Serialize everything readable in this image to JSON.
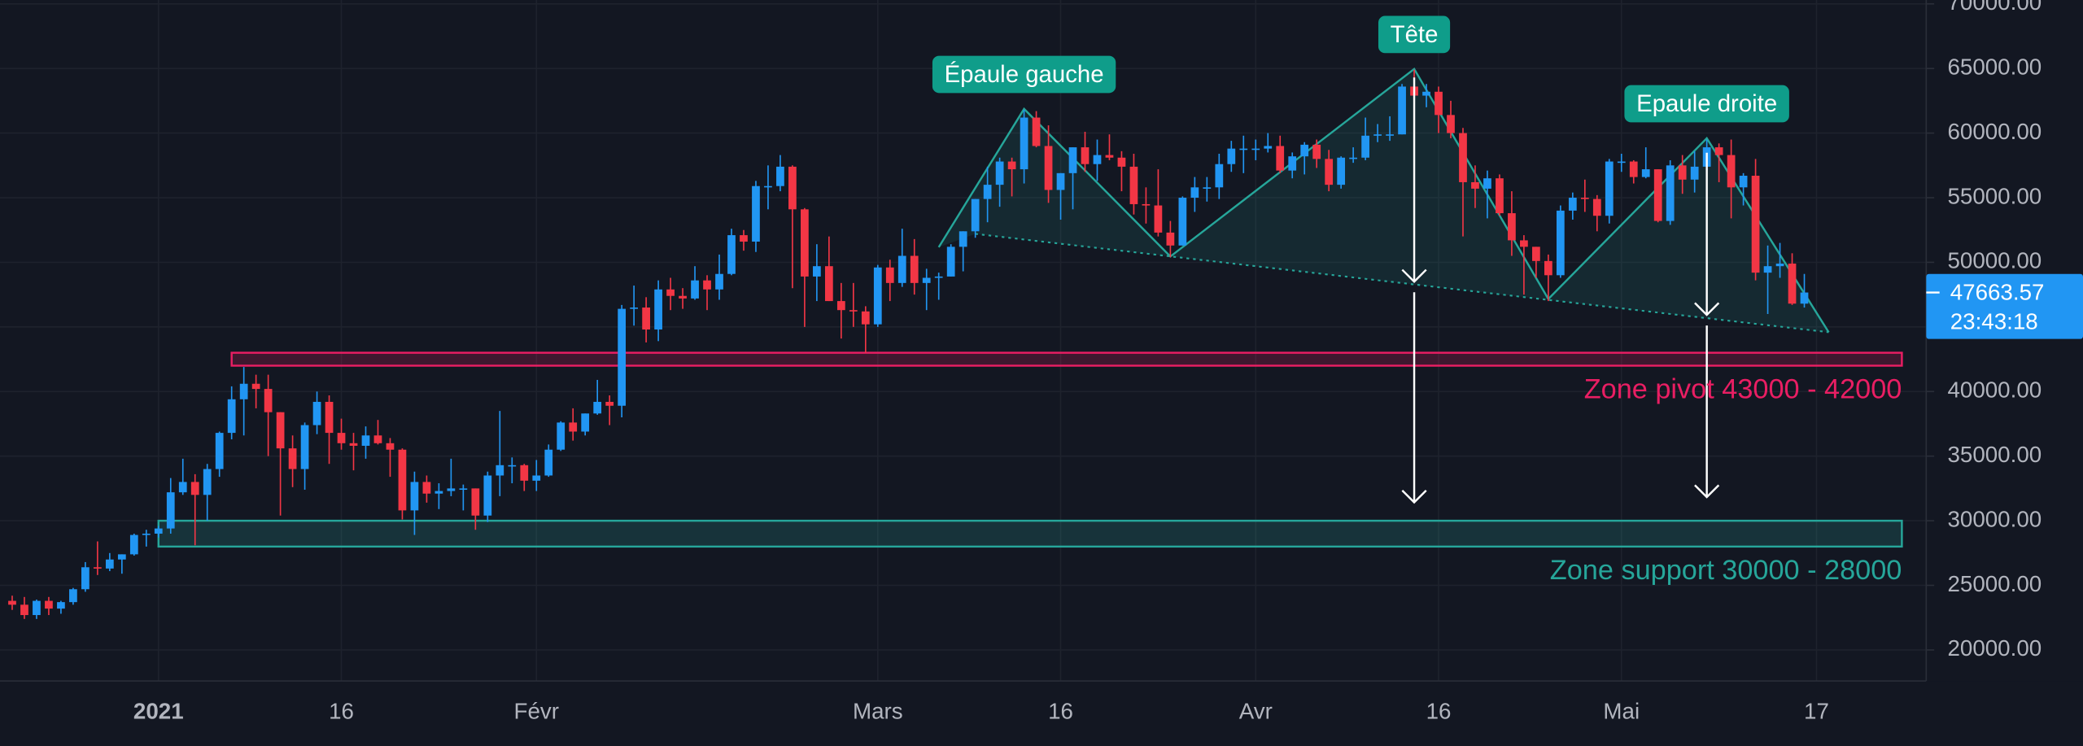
{
  "chart_data": {
    "type": "candlestick",
    "x": [
      "2020-12-20",
      "2020-12-21",
      "2020-12-22",
      "2020-12-23",
      "2020-12-24",
      "2020-12-25",
      "2020-12-26",
      "2020-12-27",
      "2020-12-28",
      "2020-12-29",
      "2020-12-30",
      "2020-12-31",
      "2021-01-01",
      "2021-01-02",
      "2021-01-03",
      "2021-01-04",
      "2021-01-05",
      "2021-01-06",
      "2021-01-07",
      "2021-01-08",
      "2021-01-09",
      "2021-01-10",
      "2021-01-11",
      "2021-01-12",
      "2021-01-13",
      "2021-01-14",
      "2021-01-15",
      "2021-01-16",
      "2021-01-17",
      "2021-01-18",
      "2021-01-19",
      "2021-01-20",
      "2021-01-21",
      "2021-01-22",
      "2021-01-23",
      "2021-01-24",
      "2021-01-25",
      "2021-01-26",
      "2021-01-27",
      "2021-01-28",
      "2021-01-29",
      "2021-01-30",
      "2021-01-31",
      "2021-02-01",
      "2021-02-02",
      "2021-02-03",
      "2021-02-04",
      "2021-02-05",
      "2021-02-06",
      "2021-02-07",
      "2021-02-08",
      "2021-02-09",
      "2021-02-10",
      "2021-02-11",
      "2021-02-12",
      "2021-02-13",
      "2021-02-14",
      "2021-02-15",
      "2021-02-16",
      "2021-02-17",
      "2021-02-18",
      "2021-02-19",
      "2021-02-20",
      "2021-02-21",
      "2021-02-22",
      "2021-02-23",
      "2021-02-24",
      "2021-02-25",
      "2021-02-26",
      "2021-02-27",
      "2021-02-28",
      "2021-03-01",
      "2021-03-02",
      "2021-03-03",
      "2021-03-04",
      "2021-03-05",
      "2021-03-06",
      "2021-03-07",
      "2021-03-08",
      "2021-03-09",
      "2021-03-10",
      "2021-03-11",
      "2021-03-12",
      "2021-03-13",
      "2021-03-14",
      "2021-03-15",
      "2021-03-16",
      "2021-03-17",
      "2021-03-18",
      "2021-03-19",
      "2021-03-20",
      "2021-03-21",
      "2021-03-22",
      "2021-03-23",
      "2021-03-24",
      "2021-03-25",
      "2021-03-26",
      "2021-03-27",
      "2021-03-28",
      "2021-03-29",
      "2021-03-30",
      "2021-03-31",
      "2021-04-01",
      "2021-04-02",
      "2021-04-03",
      "2021-04-04",
      "2021-04-05",
      "2021-04-06",
      "2021-04-07",
      "2021-04-08",
      "2021-04-09",
      "2021-04-10",
      "2021-04-11",
      "2021-04-12",
      "2021-04-13",
      "2021-04-14",
      "2021-04-15",
      "2021-04-16",
      "2021-04-17",
      "2021-04-18",
      "2021-04-19",
      "2021-04-20",
      "2021-04-21",
      "2021-04-22",
      "2021-04-23",
      "2021-04-24",
      "2021-04-25",
      "2021-04-26",
      "2021-04-27",
      "2021-04-28",
      "2021-04-29",
      "2021-04-30",
      "2021-05-01",
      "2021-05-02",
      "2021-05-03",
      "2021-05-04",
      "2021-05-05",
      "2021-05-06",
      "2021-05-07",
      "2021-05-08",
      "2021-05-09",
      "2021-05-10",
      "2021-05-11",
      "2021-05-12",
      "2021-05-13",
      "2021-05-14",
      "2021-05-15",
      "2021-05-16"
    ],
    "open": [
      23800,
      23500,
      22700,
      23800,
      23200,
      23700,
      24700,
      26400,
      26300,
      27000,
      27400,
      28900,
      29000,
      29400,
      32200,
      33000,
      32000,
      34000,
      36800,
      39400,
      40600,
      40200,
      38400,
      35600,
      34000,
      37400,
      39200,
      36800,
      36000,
      35800,
      36600,
      36000,
      35500,
      30800,
      33000,
      32100,
      32300,
      32500,
      32500,
      30400,
      33500,
      34300,
      34300,
      33100,
      33500,
      35500,
      37600,
      36900,
      38300,
      39200,
      38900,
      46400,
      46500,
      44800,
      47900,
      47400,
      47200,
      48600,
      47900,
      49100,
      52100,
      51600,
      55900,
      55900,
      57400,
      54100,
      48900,
      49700,
      47000,
      46300,
      46200,
      45200,
      49600,
      48400,
      50500,
      48400,
      48800,
      48900,
      51200,
      52400,
      54900,
      56000,
      57800,
      57200,
      61200,
      59000,
      55600,
      56900,
      58900,
      57600,
      58300,
      58100,
      57400,
      54500,
      54400,
      52300,
      51300,
      55000,
      55800,
      55800,
      57600,
      58800,
      58800,
      58800,
      59000,
      57100,
      58200,
      59100,
      58000,
      56000,
      58100,
      58100,
      59800,
      59900,
      59900,
      63600,
      62900,
      63200,
      61400,
      60000,
      56200,
      55700,
      56500,
      53800,
      51700,
      51200,
      50100,
      49000,
      54000,
      55000,
      54900,
      53600,
      57800,
      57800,
      56600,
      57200,
      53200,
      57500,
      56400,
      57400,
      58900,
      58300,
      55800,
      56700,
      49200,
      49700,
      49900,
      46800
    ],
    "high": [
      24200,
      24100,
      23900,
      24100,
      23800,
      24800,
      26800,
      28400,
      27500,
      27400,
      29000,
      29300,
      29600,
      33300,
      34800,
      33600,
      34400,
      36900,
      40400,
      41900,
      41300,
      41300,
      38400,
      36600,
      37600,
      40000,
      39700,
      37900,
      36800,
      37300,
      37800,
      36400,
      35600,
      33800,
      33500,
      32900,
      34800,
      32800,
      32500,
      33800,
      38500,
      34900,
      34400,
      34700,
      35900,
      37700,
      38700,
      38300,
      40900,
      39700,
      46700,
      48200,
      47300,
      48600,
      48800,
      48000,
      49700,
      49000,
      50600,
      52600,
      52500,
      56300,
      57500,
      58300,
      57500,
      54200,
      51400,
      52000,
      48400,
      48400,
      46600,
      49800,
      50200,
      52600,
      51800,
      49500,
      49200,
      51400,
      52400,
      54900,
      57400,
      58100,
      58100,
      61800,
      61700,
      60600,
      56900,
      58900,
      60100,
      59500,
      59900,
      58600,
      58400,
      55800,
      57200,
      53200,
      55100,
      56600,
      56600,
      58400,
      59400,
      59800,
      59500,
      60000,
      59800,
      58500,
      59300,
      59500,
      58700,
      58200,
      58900,
      61200,
      60700,
      61300,
      63800,
      64900,
      63800,
      63600,
      62500,
      60400,
      57500,
      57100,
      56800,
      55500,
      52100,
      51200,
      50600,
      54400,
      55400,
      56400,
      55200,
      58000,
      58400,
      57900,
      58900,
      57200,
      57900,
      58300,
      58600,
      59500,
      59200,
      59500,
      56900,
      58000,
      51300,
      51500,
      50700,
      49100
    ],
    "low": [
      23100,
      22400,
      22400,
      22700,
      22800,
      23500,
      24500,
      25800,
      26100,
      25900,
      27300,
      28000,
      28700,
      29000,
      32000,
      28100,
      30000,
      33400,
      36300,
      36600,
      38700,
      35000,
      30400,
      32600,
      32400,
      36700,
      34400,
      35500,
      33900,
      34800,
      35900,
      33400,
      30100,
      28900,
      31400,
      30900,
      31900,
      30800,
      29300,
      29900,
      31900,
      32900,
      32300,
      32300,
      33400,
      35400,
      36200,
      36600,
      38200,
      37400,
      38000,
      45100,
      43800,
      43900,
      46300,
      46400,
      47100,
      46300,
      47100,
      49000,
      50900,
      50800,
      54100,
      55500,
      48000,
      45000,
      47000,
      47000,
      44100,
      45000,
      43000,
      45000,
      47000,
      48100,
      47500,
      46300,
      47100,
      48900,
      49300,
      51900,
      53100,
      54300,
      55100,
      56100,
      58900,
      54600,
      53300,
      54100,
      57000,
      56300,
      57900,
      55500,
      53700,
      53000,
      52000,
      50400,
      51300,
      53900,
      54700,
      54900,
      57000,
      56900,
      57900,
      58500,
      56900,
      56500,
      56800,
      57300,
      55500,
      55700,
      57700,
      57900,
      59300,
      59400,
      59900,
      61300,
      62000,
      60000,
      59600,
      52000,
      54200,
      53400,
      53600,
      50500,
      47500,
      48800,
      47000,
      48800,
      53300,
      53900,
      52400,
      53000,
      57000,
      56100,
      56500,
      53100,
      52900,
      55300,
      55400,
      56900,
      56200,
      53400,
      54400,
      48600,
      46000,
      48800,
      46700,
      46500
    ],
    "close": [
      23500,
      22700,
      23800,
      23200,
      23700,
      24700,
      26400,
      26300,
      27000,
      27400,
      28900,
      29000,
      29400,
      32200,
      33000,
      32000,
      34000,
      36800,
      39400,
      40600,
      40200,
      38400,
      35600,
      34000,
      37400,
      39200,
      36800,
      36000,
      35800,
      36600,
      36000,
      35500,
      30800,
      33000,
      32100,
      32300,
      32500,
      32500,
      30400,
      33500,
      34300,
      34300,
      33100,
      33500,
      35500,
      37600,
      36900,
      38300,
      39200,
      38900,
      46400,
      46500,
      44800,
      47900,
      47400,
      47200,
      48600,
      47900,
      49100,
      52100,
      51600,
      55900,
      55900,
      57400,
      54100,
      48900,
      49700,
      47000,
      46300,
      46200,
      45200,
      49600,
      48400,
      50500,
      48400,
      48800,
      48900,
      51200,
      52400,
      54900,
      56000,
      57800,
      57200,
      61200,
      59000,
      55600,
      56900,
      58900,
      57600,
      58300,
      58100,
      57400,
      54500,
      54400,
      52300,
      51300,
      55000,
      55800,
      55800,
      57600,
      58800,
      58800,
      58800,
      59000,
      57100,
      58200,
      59100,
      58000,
      56000,
      58100,
      58100,
      59800,
      59900,
      59900,
      63600,
      62900,
      63200,
      61400,
      60000,
      56200,
      55700,
      56500,
      53800,
      51700,
      51200,
      50100,
      49000,
      54000,
      55000,
      54900,
      53600,
      57800,
      57800,
      56600,
      57200,
      53200,
      57500,
      56400,
      57400,
      58900,
      58300,
      55800,
      56700,
      49200,
      49700,
      49900,
      46800,
      47663.57
    ],
    "up_color": "#2196f3",
    "down_color": "#f23645",
    "xlim": [
      "2020-12-19",
      "2021-05-26"
    ],
    "xticks": [
      {
        "value": "2021-01-01",
        "label": "2021"
      },
      {
        "value": "2021-01-16",
        "label": "16"
      },
      {
        "value": "2021-02-01",
        "label": "Févr"
      },
      {
        "value": "2021-03-01",
        "label": "Mars"
      },
      {
        "value": "2021-03-16",
        "label": "16"
      },
      {
        "value": "2021-04-01",
        "label": "Avr"
      },
      {
        "value": "2021-04-16",
        "label": "16"
      },
      {
        "value": "2021-05-01",
        "label": "Mai"
      },
      {
        "value": "2021-05-17",
        "label": "17"
      }
    ],
    "ylim": [
      17600,
      70300
    ],
    "yticks": [
      {
        "value": 20000,
        "label": "20000.00"
      },
      {
        "value": 25000,
        "label": "25000.00"
      },
      {
        "value": 30000,
        "label": "30000.00"
      },
      {
        "value": 35000,
        "label": "35000.00"
      },
      {
        "value": 40000,
        "label": "40000.00"
      },
      {
        "value": 45000,
        "label": "45000.00"
      },
      {
        "value": 50000,
        "label": "50000.00"
      },
      {
        "value": 55000,
        "label": "55000.00"
      },
      {
        "value": 60000,
        "label": "60000.00"
      },
      {
        "value": 65000,
        "label": "65000.00"
      },
      {
        "value": 70000,
        "label": "70000.00"
      }
    ],
    "grid": true,
    "countdown": "23:43:18",
    "zones": [
      {
        "label": "Zone pivot 43000 - 42000",
        "range": [
          42000,
          43000
        ],
        "from": "2021-01-07",
        "to": "2021-05-24",
        "color": "#e91e63"
      },
      {
        "label": "Zone support 30000 - 28000",
        "range": [
          28000,
          30000
        ],
        "from": "2021-01-01",
        "to": "2021-05-24",
        "color": "#26a69a"
      }
    ],
    "pattern": {
      "color": "#26a69a",
      "x": [
        "2021-03-06",
        "2021-03-13",
        "2021-03-25",
        "2021-04-14",
        "2021-04-25",
        "2021-05-08",
        "2021-05-18"
      ],
      "y": [
        51170,
        61870,
        50450,
        64960,
        47160,
        59600,
        44590
      ],
      "neckline_x": [
        "2021-03-09",
        "2021-05-18"
      ],
      "neckline_y": [
        52200,
        44590
      ]
    },
    "pattern_labels": [
      {
        "text": "Épaule gauche",
        "x": "2021-03-13",
        "y": 61870
      },
      {
        "text": "Tête",
        "x": "2021-04-14",
        "y": 64960
      },
      {
        "text": "Epaule droite",
        "x": "2021-05-08",
        "y": 59600
      }
    ],
    "arrows": [
      {
        "x": "2021-04-14",
        "from": 64300,
        "to": 48500
      },
      {
        "x": "2021-04-14",
        "from": 47680,
        "to": 31420
      },
      {
        "x": "2021-05-08",
        "from": 58480,
        "to": 45930
      },
      {
        "x": "2021-05-08",
        "from": 45110,
        "to": 31830
      }
    ]
  }
}
